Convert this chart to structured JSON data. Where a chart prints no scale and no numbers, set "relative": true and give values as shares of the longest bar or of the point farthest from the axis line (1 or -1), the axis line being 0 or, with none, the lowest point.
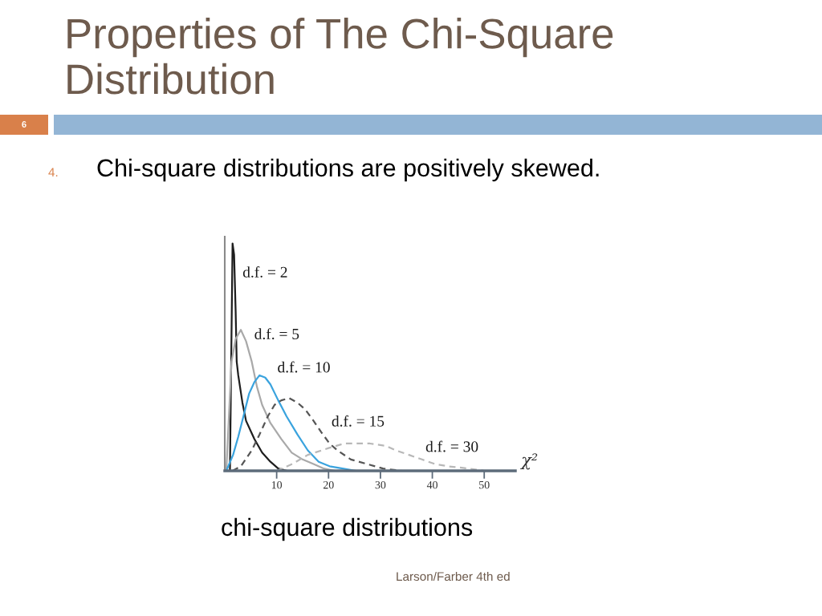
{
  "chart_data": {
    "type": "line",
    "title": "Properties of The Chi-Square Distribution",
    "subtitle": "Chi-square distributions are positively skewed.",
    "xlabel": "χ²",
    "relative": true,
    "xlim": [
      0,
      56
    ],
    "xticks": [
      10,
      20,
      30,
      40,
      50
    ],
    "annotations": [
      "6",
      "4.",
      "chi-square distributions",
      "Larson/Farber 4th ed"
    ],
    "series": [
      {
        "name": "d.f. = 2",
        "color": "#1e1e1e",
        "x": [
          1.0,
          1.5,
          1.8,
          2.1,
          2.3,
          2.6,
          3.4,
          4.1,
          5.7,
          7.2,
          8.8,
          10.3,
          12.0
        ],
        "values": [
          0,
          1.0,
          0.95,
          0.7,
          0.48,
          0.42,
          0.3,
          0.22,
          0.14,
          0.08,
          0.04,
          0.01,
          0
        ]
      },
      {
        "name": "d.f. = 5",
        "color": "#a9a9a9",
        "x": [
          0.3,
          0.8,
          1.3,
          2.1,
          3.1,
          4.1,
          5.2,
          6.2,
          7.2,
          8.8,
          10.9,
          12.9,
          15.0,
          17.1,
          19.1,
          21.2
        ],
        "values": [
          0,
          0.24,
          0.48,
          0.58,
          0.62,
          0.57,
          0.48,
          0.37,
          0.29,
          0.21,
          0.14,
          0.08,
          0.05,
          0.03,
          0.01,
          0
        ]
      },
      {
        "name": "d.f. = 10",
        "color": "#3aa3de",
        "x": [
          0.3,
          1.6,
          2.6,
          3.6,
          4.7,
          5.7,
          6.7,
          7.8,
          8.8,
          10.3,
          11.9,
          14.0,
          16.0,
          18.1,
          20.2,
          22.7,
          25.3
        ],
        "values": [
          0,
          0.07,
          0.15,
          0.24,
          0.34,
          0.39,
          0.42,
          0.41,
          0.38,
          0.31,
          0.24,
          0.16,
          0.09,
          0.04,
          0.02,
          0.01,
          0
        ]
      },
      {
        "name": "d.f. = 15",
        "color": "#555555",
        "line_style": "dashed",
        "x": [
          1.5,
          3.1,
          5.2,
          6.7,
          8.3,
          9.6,
          10.9,
          12.4,
          14.0,
          15.5,
          17.1,
          18.6,
          20.2,
          21.7,
          24.3,
          27.4,
          30.5,
          34.0
        ],
        "values": [
          0,
          0.02,
          0.09,
          0.16,
          0.24,
          0.29,
          0.31,
          0.32,
          0.3,
          0.27,
          0.22,
          0.17,
          0.12,
          0.09,
          0.05,
          0.03,
          0.01,
          0
        ]
      },
      {
        "name": "d.f. = 30",
        "color": "#b8b8b8",
        "line_style": "dashed",
        "x": [
          10.0,
          13.0,
          16.0,
          20.0,
          23.0,
          26.0,
          28.0,
          31.0,
          33.0,
          35.5,
          38.0,
          40.5,
          43.0,
          47.0,
          50.0
        ],
        "values": [
          0,
          0.03,
          0.07,
          0.1,
          0.12,
          0.12,
          0.12,
          0.11,
          0.09,
          0.07,
          0.05,
          0.03,
          0.02,
          0.01,
          0
        ]
      }
    ]
  }
}
